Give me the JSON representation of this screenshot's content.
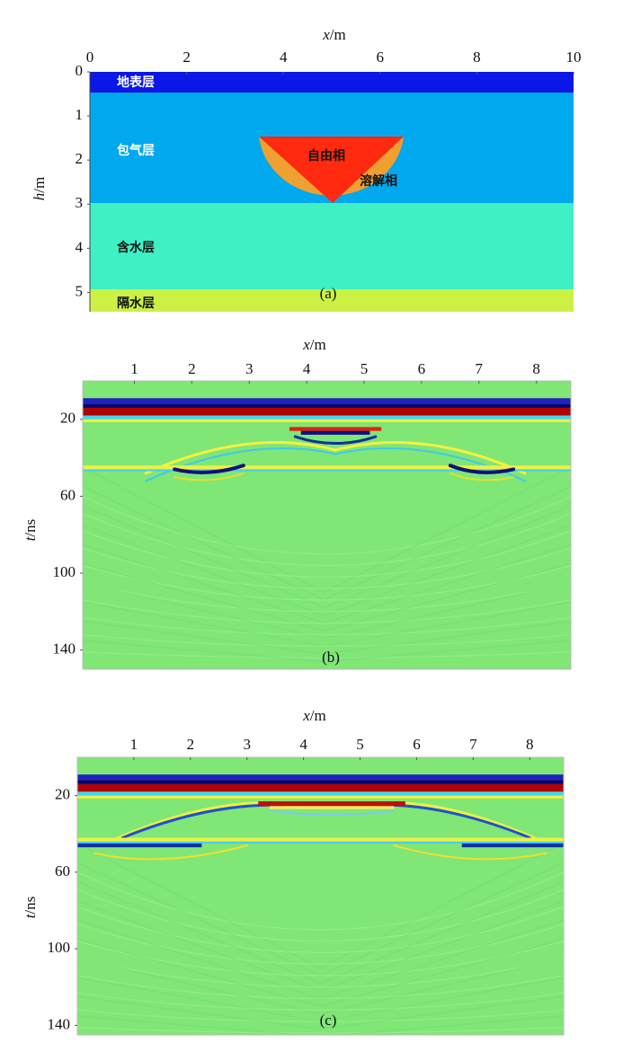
{
  "panels": [
    {
      "xlabel": {
        "var": "x",
        "unit": "/m"
      },
      "ylabel": {
        "var": "h",
        "unit": "/m"
      },
      "xlim": [
        0,
        10
      ],
      "ylim": [
        0,
        5.5
      ],
      "xticks": [
        0,
        2,
        4,
        6,
        8,
        10
      ],
      "yticks": [
        0,
        1,
        2,
        3,
        4,
        5
      ],
      "layers": [
        "地表层",
        "包气层",
        "含水层",
        "隔水层"
      ],
      "annotations": [
        "自由相",
        "溶解相"
      ],
      "label": "(a)"
    },
    {
      "xlabel": {
        "var": "x",
        "unit": "/m"
      },
      "ylabel": {
        "var": "t",
        "unit": "/ns"
      },
      "xlim": [
        0.1,
        8.6
      ],
      "ylim": [
        0,
        150
      ],
      "xticks": [
        1,
        2,
        3,
        4,
        5,
        6,
        7,
        8
      ],
      "yticks": [
        20,
        60,
        100,
        140
      ],
      "label": "(b)"
    },
    {
      "xlabel": {
        "var": "x",
        "unit": "/m"
      },
      "ylabel": {
        "var": "t",
        "unit": "/ns"
      },
      "xlim": [
        0,
        8.6
      ],
      "ylim": [
        0,
        145
      ],
      "xticks": [
        1,
        2,
        3,
        4,
        5,
        6,
        7,
        8
      ],
      "yticks": [
        20,
        60,
        100,
        140
      ],
      "label": "(c)"
    }
  ]
}
